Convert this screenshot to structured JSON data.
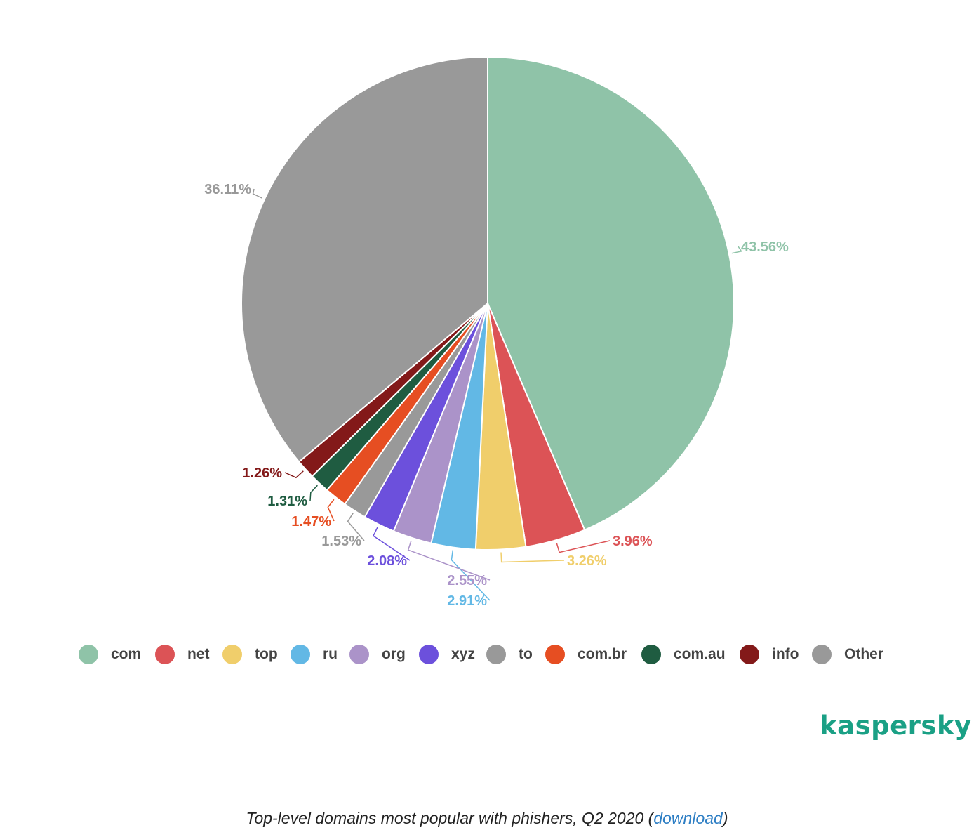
{
  "chart_data": {
    "type": "pie",
    "title": "",
    "categories": [
      "com",
      "net",
      "top",
      "ru",
      "org",
      "xyz",
      "to",
      "com.br",
      "com.au",
      "info",
      "Other"
    ],
    "values": [
      43.56,
      3.96,
      3.26,
      2.91,
      2.55,
      2.08,
      1.53,
      1.47,
      1.31,
      1.26,
      36.11
    ],
    "data_labels": [
      "43.56%",
      "3.96%",
      "3.26%",
      "2.91%",
      "2.55%",
      "2.08%",
      "1.53%",
      "1.47%",
      "1.31%",
      "1.26%",
      "36.11%"
    ],
    "colors": [
      "#8fc3a8",
      "#dc5356",
      "#f0ce6b",
      "#62b8e5",
      "#ab93c9",
      "#6c50dc",
      "#999999",
      "#e64e22",
      "#1f5c41",
      "#831919",
      "#999999"
    ],
    "legend_position": "bottom",
    "start_angle": "12 o'clock, clockwise"
  },
  "brand": {
    "logo_text": "kaspersky",
    "logo_color": "#1aa085"
  },
  "caption": {
    "text": "Top-level domains most popular with phishers, Q2 2020 (",
    "link_text": "download",
    "close": ")"
  }
}
